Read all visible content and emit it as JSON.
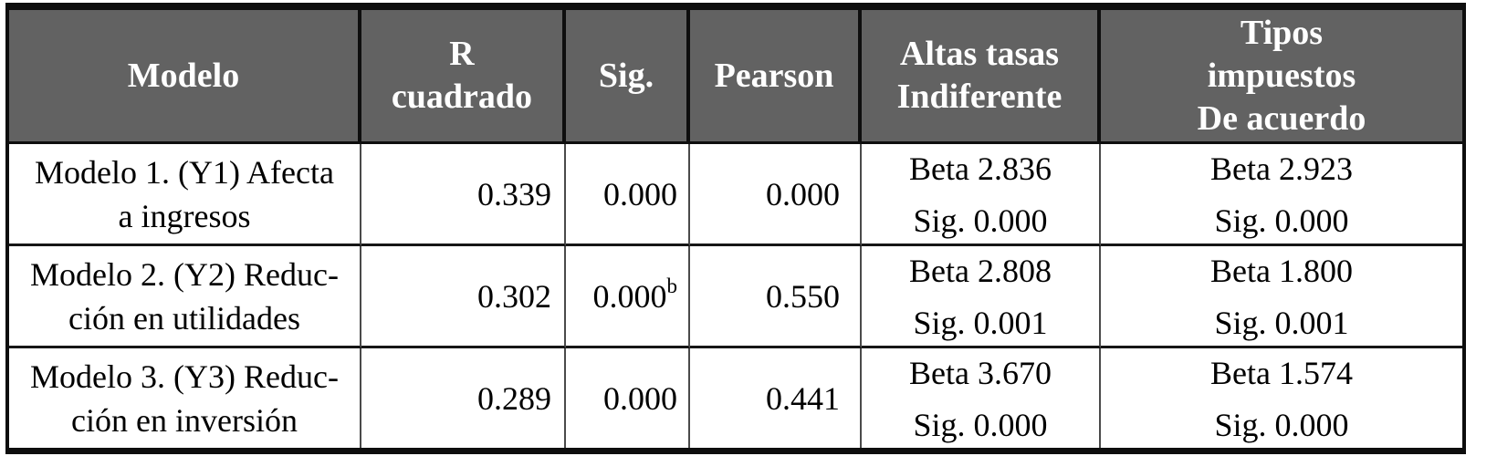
{
  "colors": {
    "header_bg": "#626262",
    "header_text": "#ffffff",
    "body_text": "#000000",
    "border_outer": "#0e0e0e",
    "border_inner": "#4a4a4a"
  },
  "header": {
    "modelo": "Modelo",
    "r_cuadrado": "R\ncuadrado",
    "sig": "Sig.",
    "pearson": "Pearson",
    "altas_tasas": "Altas tasas\nIndiferente",
    "tipos_impuestos": "Tipos\nimpuestos\nDe acuerdo"
  },
  "rows": [
    {
      "model": "Modelo 1. (Y1) Afecta\na ingresos",
      "r_cuadrado": "0.339",
      "sig": "0.000",
      "sig_sup": "",
      "pearson": "0.000",
      "altas_beta": "Beta 2.836",
      "altas_sig": "Sig. 0.000",
      "tipos_beta": "Beta 2.923",
      "tipos_sig": "Sig. 0.000"
    },
    {
      "model": "Modelo 2. (Y2) Reduc-\nción en utilidades",
      "r_cuadrado": "0.302",
      "sig": "0.000",
      "sig_sup": "b",
      "pearson": "0.550",
      "altas_beta": "Beta 2.808",
      "altas_sig": "Sig. 0.001",
      "tipos_beta": "Beta 1.800",
      "tipos_sig": "Sig. 0.001"
    },
    {
      "model": "Modelo 3. (Y3) Reduc-\nción en inversión",
      "r_cuadrado": "0.289",
      "sig": "0.000",
      "sig_sup": "",
      "pearson": "0.441",
      "altas_beta": "Beta 3.670",
      "altas_sig": "Sig. 0.000",
      "tipos_beta": "Beta 1.574",
      "tipos_sig": "Sig. 0.000"
    }
  ]
}
